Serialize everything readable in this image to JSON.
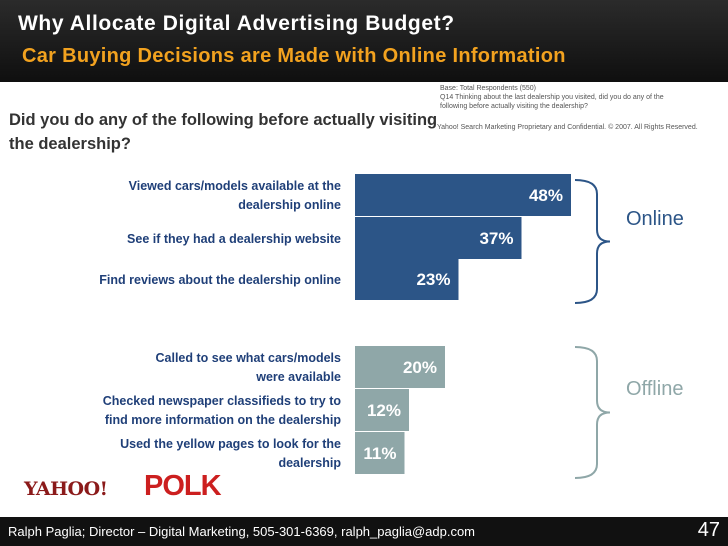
{
  "header": {
    "title": "Why Allocate Digital Advertising Budget?",
    "subtitle": "Car Buying Decisions are Made with Online Information",
    "background": "#111111",
    "title_color": "#ffffff",
    "subtitle_color": "#f2a21f"
  },
  "notes": {
    "base": "Base: Total Respondents (550)",
    "question_ref": "Q14 Thinking about the last dealership you visited, did you do any of the following before actually visiting the dealership?",
    "copyright": "Yahoo! Search Marketing Proprietary and Confidential. © 2007. All Rights Reserved."
  },
  "question": "Did you do any of the following before actually visiting the dealership?",
  "chart_data": {
    "type": "bar",
    "orientation": "horizontal",
    "categories": [
      "Viewed cars/models available at the dealership online",
      "See if they had a dealership website",
      "Find reviews about the dealership online",
      "Called to see what cars/models were available",
      "Checked newspaper classifieds to try to find more information on the dealership",
      "Used the yellow pages to look for the dealership"
    ],
    "values": [
      48,
      37,
      23,
      20,
      12,
      11
    ],
    "value_labels": [
      "48%",
      "37%",
      "23%",
      "20%",
      "12%",
      "11%"
    ],
    "group": [
      "online",
      "online",
      "online",
      "offline",
      "offline",
      "offline"
    ],
    "xlim": [
      0,
      100
    ],
    "groups": [
      {
        "key": "online",
        "label": "Online",
        "color": "#2c5587"
      },
      {
        "key": "offline",
        "label": "Offline",
        "color": "#8fa7a8"
      }
    ],
    "label_color": "#1f3f78",
    "value_label_color": "#ffffff",
    "grid": false
  },
  "logos": {
    "yahoo": "YAHOO!",
    "polk": "POLK"
  },
  "footer": {
    "text": "Ralph Paglia; Director – Digital Marketing, 505-301-6369, ralph_paglia@adp.com",
    "page": "47"
  }
}
